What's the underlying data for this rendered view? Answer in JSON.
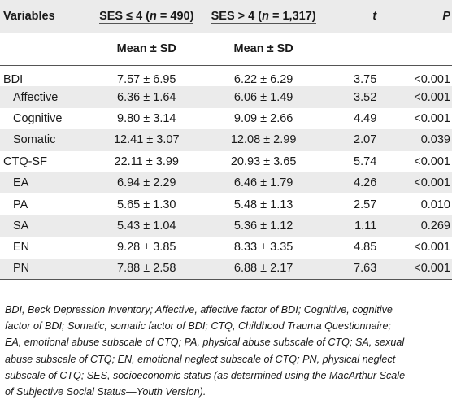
{
  "table": {
    "header": {
      "variables": "Variables",
      "group1": "SES ≤ 4 (n = 490)",
      "group1_parts": {
        "pre": "SES ≤ 4 (",
        "n": "n",
        "post": " = 490)"
      },
      "group2": "SES > 4 (n = 1,317)",
      "group2_parts": {
        "pre": "SES > 4 (",
        "n": "n",
        "post": " = 1,317)"
      },
      "t": "t",
      "p": "P",
      "subheader1": "Mean ± SD",
      "subheader2": "Mean ± SD"
    },
    "rows": [
      {
        "label": "BDI",
        "indent": false,
        "g1": "7.57 ± 6.95",
        "g2": "6.22 ± 6.29",
        "t": "3.75",
        "p": "<0.001"
      },
      {
        "label": "Affective",
        "indent": true,
        "g1": "6.36 ± 1.64",
        "g2": "6.06 ± 1.49",
        "t": "3.52",
        "p": "<0.001"
      },
      {
        "label": "Cognitive",
        "indent": true,
        "g1": "9.80 ± 3.14",
        "g2": "9.09 ± 2.66",
        "t": "4.49",
        "p": "<0.001"
      },
      {
        "label": "Somatic",
        "indent": true,
        "g1": "12.41 ± 3.07",
        "g2": "12.08 ± 2.99",
        "t": "2.07",
        "p": "0.039"
      },
      {
        "label": "CTQ-SF",
        "indent": false,
        "g1": "22.11 ± 3.99",
        "g2": "20.93 ± 3.65",
        "t": "5.74",
        "p": "<0.001"
      },
      {
        "label": "EA",
        "indent": true,
        "g1": "6.94 ± 2.29",
        "g2": "6.46 ± 1.79",
        "t": "4.26",
        "p": "<0.001"
      },
      {
        "label": "PA",
        "indent": true,
        "g1": "5.65 ± 1.30",
        "g2": "5.48 ± 1.13",
        "t": "2.57",
        "p": "0.010"
      },
      {
        "label": "SA",
        "indent": true,
        "g1": "5.43 ± 1.04",
        "g2": "5.36 ± 1.12",
        "t": "1.11",
        "p": "0.269"
      },
      {
        "label": "EN",
        "indent": true,
        "g1": "9.28 ± 3.85",
        "g2": "8.33 ± 3.35",
        "t": "4.85",
        "p": "<0.001"
      },
      {
        "label": "PN",
        "indent": true,
        "g1": "7.88 ± 2.58",
        "g2": "6.88 ± 2.17",
        "t": "7.63",
        "p": "<0.001"
      }
    ]
  },
  "footnote": {
    "lines": [
      "BDI, Beck Depression Inventory; Affective, affective factor of BDI; Cognitive, cognitive",
      "factor of BDI; Somatic, somatic factor of BDI; CTQ, Childhood Trauma Questionnaire;",
      "EA, emotional abuse subscale of CTQ; PA, physical abuse subscale of CTQ; SA, sexual",
      "abuse subscale of CTQ; EN, emotional neglect subscale of CTQ; PN, physical neglect",
      "subscale of CTQ; SES, socioeconomic status (as determined using the MacArthur Scale",
      "of Subjective Social Status—Youth Version)."
    ]
  },
  "colors": {
    "header_band": "#ebebeb",
    "alt_row": "#ebebeb",
    "rule": "#555555",
    "text": "#1a1a1a"
  }
}
